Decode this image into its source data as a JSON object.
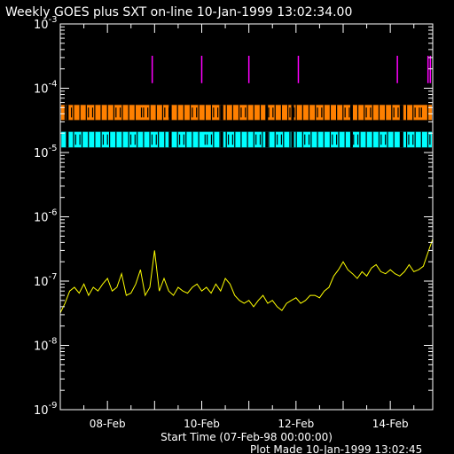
{
  "chart_data": {
    "type": "line",
    "title": "Weekly GOES plus SXT on-line 10-Jan-1999 13:02:34.00",
    "xlabel": "Start Time (07-Feb-98 00:00:00)",
    "footer": "Plot Made 10-Jan-1999 13:02:45",
    "y_scale": "log",
    "ylim": [
      1e-09,
      0.001
    ],
    "xlim_days": [
      0,
      7.9
    ],
    "y_ticks": [
      {
        "base": "10",
        "exp": "-3",
        "value": 0.001
      },
      {
        "base": "10",
        "exp": "-4",
        "value": 0.0001
      },
      {
        "base": "10",
        "exp": "-5",
        "value": 1e-05
      },
      {
        "base": "10",
        "exp": "-6",
        "value": 1e-06
      },
      {
        "base": "10",
        "exp": "-7",
        "value": 1e-07
      },
      {
        "base": "10",
        "exp": "-8",
        "value": 1e-08
      },
      {
        "base": "10",
        "exp": "-9",
        "value": 1e-09
      }
    ],
    "x_ticks": [
      {
        "label": "08-Feb",
        "day": 1
      },
      {
        "label": "10-Feb",
        "day": 3
      },
      {
        "label": "12-Feb",
        "day": 5
      },
      {
        "label": "14-Feb",
        "day": 7
      }
    ],
    "colors": {
      "flux": "#ffff00",
      "orange_band": "#ff8000",
      "cyan_band": "#00ffff",
      "markers": "#ff00ff",
      "axes": "#ffffff"
    },
    "bands": [
      {
        "color": "#ff8000",
        "y_low": 3.2e-05,
        "y_high": 5.5e-05
      },
      {
        "color": "#00ffff",
        "y_low": 1.2e-05,
        "y_high": 2.1e-05
      }
    ],
    "markers_days": [
      1.95,
      3.0,
      4.0,
      5.05,
      7.15,
      7.8,
      7.85
    ],
    "marker_range": [
      0.00012,
      0.00032
    ],
    "series": [
      {
        "color": "#ffff00",
        "x_days": [
          0,
          0.1,
          0.2,
          0.3,
          0.4,
          0.5,
          0.6,
          0.7,
          0.8,
          0.9,
          1.0,
          1.1,
          1.2,
          1.3,
          1.4,
          1.5,
          1.6,
          1.7,
          1.8,
          1.9,
          2.0,
          2.1,
          2.2,
          2.3,
          2.4,
          2.5,
          2.6,
          2.7,
          2.8,
          2.9,
          3.0,
          3.1,
          3.2,
          3.3,
          3.4,
          3.5,
          3.6,
          3.7,
          3.8,
          3.9,
          4.0,
          4.1,
          4.2,
          4.3,
          4.4,
          4.5,
          4.6,
          4.7,
          4.8,
          4.9,
          5.0,
          5.1,
          5.2,
          5.3,
          5.4,
          5.5,
          5.6,
          5.7,
          5.8,
          5.9,
          6.0,
          6.1,
          6.2,
          6.3,
          6.4,
          6.5,
          6.6,
          6.7,
          6.8,
          6.9,
          7.0,
          7.1,
          7.2,
          7.3,
          7.4,
          7.5,
          7.6,
          7.7,
          7.8,
          7.9
        ],
        "y": [
          3.2e-08,
          4.5e-08,
          7e-08,
          8e-08,
          6.5e-08,
          9e-08,
          6e-08,
          8e-08,
          7e-08,
          9e-08,
          1.1e-07,
          7e-08,
          8e-08,
          1.3e-07,
          6e-08,
          6.5e-08,
          9e-08,
          1.5e-07,
          6e-08,
          8e-08,
          3e-07,
          7e-08,
          1.1e-07,
          7e-08,
          6e-08,
          8e-08,
          7e-08,
          6.5e-08,
          8e-08,
          9e-08,
          7e-08,
          8e-08,
          6.5e-08,
          9e-08,
          7e-08,
          1.1e-07,
          9e-08,
          6e-08,
          5e-08,
          4.5e-08,
          5e-08,
          4e-08,
          5e-08,
          6e-08,
          4.5e-08,
          5e-08,
          4e-08,
          3.5e-08,
          4.5e-08,
          5e-08,
          5.5e-08,
          4.5e-08,
          5e-08,
          6e-08,
          6e-08,
          5.5e-08,
          7e-08,
          8e-08,
          1.2e-07,
          1.5e-07,
          2e-07,
          1.5e-07,
          1.3e-07,
          1.1e-07,
          1.4e-07,
          1.2e-07,
          1.6e-07,
          1.8e-07,
          1.4e-07,
          1.3e-07,
          1.5e-07,
          1.3e-07,
          1.2e-07,
          1.4e-07,
          1.8e-07,
          1.4e-07,
          1.5e-07,
          1.7e-07,
          2.8e-07,
          4.5e-07
        ]
      }
    ]
  }
}
